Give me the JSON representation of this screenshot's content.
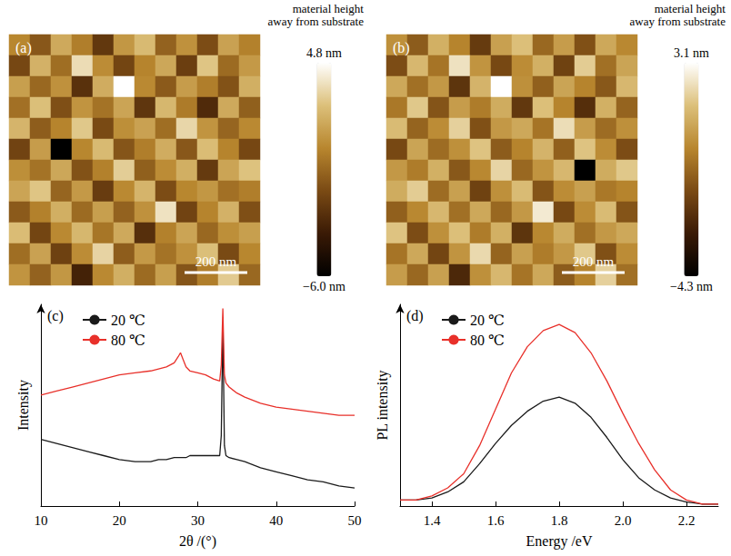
{
  "chart_data": [
    {
      "type": "heatmap",
      "panel": "(a)",
      "colorbar_title": "material height away from substrate",
      "colorbar_range": [
        -6.0,
        4.8
      ],
      "colorbar_ticks": [
        {
          "value": 4.8,
          "label": "4.8 nm"
        },
        {
          "value": -6.0,
          "label": "−6.0 nm"
        }
      ],
      "scale_bar": {
        "value": 200,
        "label": "200 nm"
      },
      "field": 800,
      "cells": [
        [
          0.5,
          -1.2,
          1.8,
          0.2,
          -2.5,
          1.1,
          2.4,
          -0.8,
          0.9,
          -1.6,
          1.5,
          0.3
        ],
        [
          -1.8,
          2.1,
          -0.4,
          3.6,
          0.7,
          -1.9,
          0.4,
          1.7,
          -2.2,
          2.8,
          -0.5,
          1.2
        ],
        [
          1.4,
          -0.6,
          0.9,
          -2.8,
          1.9,
          4.8,
          0.6,
          -1.1,
          1.3,
          0.2,
          -1.4,
          2.0
        ],
        [
          -0.3,
          2.6,
          -1.5,
          1.0,
          -0.2,
          1.6,
          -2.6,
          2.3,
          0.1,
          -3.1,
          1.8,
          -0.9
        ],
        [
          2.2,
          -1.0,
          0.4,
          2.9,
          -1.7,
          0.8,
          1.5,
          -0.4,
          3.4,
          1.0,
          -0.7,
          0.6
        ],
        [
          -2.0,
          1.3,
          -6.0,
          0.5,
          2.4,
          -1.3,
          0.2,
          1.9,
          -1.2,
          2.5,
          0.4,
          -1.8
        ],
        [
          0.8,
          -0.2,
          1.7,
          -1.4,
          0.3,
          3.1,
          -0.9,
          0.7,
          2.0,
          -2.4,
          1.6,
          2.7
        ],
        [
          1.6,
          2.8,
          -0.7,
          1.2,
          -2.3,
          0.6,
          2.2,
          -1.6,
          0.5,
          1.1,
          -0.3,
          0.2
        ],
        [
          -1.1,
          0.3,
          2.0,
          -0.5,
          1.4,
          -0.8,
          0.9,
          3.8,
          -2.0,
          0.4,
          2.1,
          -1.5
        ],
        [
          2.5,
          -1.9,
          0.6,
          2.3,
          -0.1,
          1.8,
          -2.9,
          0.3,
          1.6,
          -0.6,
          0.8,
          1.4
        ],
        [
          -0.4,
          1.5,
          -2.1,
          0.7,
          3.3,
          -1.0,
          1.2,
          -0.2,
          0.9,
          2.6,
          -1.7,
          0.5
        ],
        [
          1.0,
          -0.8,
          1.1,
          -3.5,
          0.6,
          2.0,
          -0.5,
          1.4,
          -1.3,
          0.2,
          3.0,
          -0.6
        ]
      ]
    },
    {
      "type": "heatmap",
      "panel": "(b)",
      "colorbar_title": "material height away from substrate",
      "colorbar_range": [
        -4.3,
        3.1
      ],
      "colorbar_ticks": [
        {
          "value": 3.1,
          "label": "3.1 nm"
        },
        {
          "value": -4.3,
          "label": "−4.3 nm"
        }
      ],
      "scale_bar": {
        "value": 200,
        "label": "200 nm"
      },
      "field": 800,
      "cells": [
        [
          0.4,
          -0.9,
          1.2,
          0.1,
          -1.8,
          0.8,
          1.6,
          -0.6,
          0.7,
          -1.2,
          1.0,
          0.2
        ],
        [
          -1.3,
          1.4,
          -0.3,
          2.4,
          0.5,
          -1.4,
          0.3,
          1.2,
          -1.6,
          1.9,
          -0.4,
          0.9
        ],
        [
          1.0,
          -0.4,
          0.6,
          -2.0,
          1.3,
          3.1,
          0.4,
          -0.8,
          0.9,
          0.1,
          -1.0,
          1.4
        ],
        [
          -0.2,
          1.8,
          -1.1,
          0.7,
          -0.1,
          1.1,
          -1.9,
          1.6,
          0.1,
          -2.2,
          1.2,
          -0.7
        ],
        [
          1.5,
          -0.7,
          0.3,
          2.0,
          -1.2,
          0.6,
          1.0,
          -0.3,
          2.3,
          0.7,
          -0.5,
          0.4
        ],
        [
          -1.4,
          0.9,
          -0.5,
          0.4,
          1.7,
          -0.9,
          0.1,
          1.3,
          -0.8,
          1.7,
          0.3,
          -1.3
        ],
        [
          0.6,
          -0.1,
          1.2,
          -1.0,
          0.2,
          2.1,
          -0.6,
          0.5,
          1.4,
          -4.3,
          1.1,
          1.8
        ],
        [
          1.1,
          1.9,
          -0.5,
          0.8,
          -1.6,
          0.4,
          1.5,
          -1.1,
          0.3,
          0.8,
          -0.2,
          0.1
        ],
        [
          -0.8,
          0.2,
          1.4,
          -0.4,
          1.0,
          -0.6,
          0.6,
          2.6,
          -1.4,
          0.3,
          1.5,
          -1.1
        ],
        [
          1.7,
          -1.3,
          0.4,
          1.6,
          -0.1,
          1.2,
          -2.0,
          0.2,
          1.1,
          -0.4,
          0.6,
          1.0
        ],
        [
          -0.3,
          1.0,
          -1.5,
          0.5,
          2.2,
          -0.7,
          0.8,
          -0.1,
          0.6,
          1.8,
          -1.2,
          0.3
        ],
        [
          0.7,
          -0.6,
          0.8,
          -2.4,
          0.4,
          1.4,
          -0.3,
          1.0,
          -0.9,
          0.1,
          2.0,
          -0.4
        ]
      ]
    },
    {
      "type": "line",
      "panel": "(c)",
      "x_label": "2θ /(°)",
      "y_label": "Intensity",
      "x": [
        10,
        12,
        14,
        16,
        18,
        20,
        22,
        24,
        25,
        26,
        27,
        27.5,
        27.8,
        28.1,
        28.5,
        29,
        30,
        31,
        32,
        32.8,
        33.0,
        33.2,
        33.4,
        33.6,
        34,
        35,
        36,
        38,
        40,
        42,
        44,
        46,
        48,
        50
      ],
      "series": [
        {
          "name": "20 ℃",
          "color": "#1a1a1a",
          "values": [
            3.3,
            3.1,
            2.9,
            2.7,
            2.5,
            2.3,
            2.2,
            2.2,
            2.3,
            2.3,
            2.4,
            2.4,
            2.4,
            2.4,
            2.4,
            2.5,
            2.5,
            2.5,
            2.5,
            2.5,
            3.5,
            9.1,
            3.0,
            2.5,
            2.4,
            2.3,
            2.2,
            1.9,
            1.7,
            1.5,
            1.3,
            1.2,
            1.0,
            0.9
          ]
        },
        {
          "name": "80 ℃",
          "color": "#e8302a",
          "values": [
            5.5,
            5.7,
            5.9,
            6.1,
            6.3,
            6.5,
            6.6,
            6.7,
            6.8,
            6.9,
            7.1,
            7.4,
            7.6,
            7.3,
            6.9,
            6.7,
            6.6,
            6.5,
            6.3,
            6.2,
            7.0,
            9.8,
            6.5,
            6.1,
            5.9,
            5.6,
            5.4,
            5.1,
            4.9,
            4.8,
            4.7,
            4.6,
            4.5,
            4.5
          ]
        }
      ],
      "xlim": [
        10,
        50
      ],
      "xticks": [
        10,
        20,
        30,
        40,
        50
      ],
      "ylim": [
        0,
        10
      ],
      "grid": false,
      "legend": "top-left",
      "tick_labels": "x"
    },
    {
      "type": "line",
      "panel": "(d)",
      "x_label": "Energy /eV",
      "y_label": "PL intensity",
      "x": [
        1.3,
        1.35,
        1.4,
        1.45,
        1.5,
        1.55,
        1.6,
        1.65,
        1.7,
        1.75,
        1.8,
        1.85,
        1.9,
        1.95,
        2.0,
        2.05,
        2.1,
        2.15,
        2.2,
        2.25,
        2.3
      ],
      "series": [
        {
          "name": "20 ℃",
          "color": "#1a1a1a",
          "values": [
            0.3,
            0.3,
            0.4,
            0.7,
            1.2,
            2.1,
            3.1,
            4.0,
            4.7,
            5.2,
            5.4,
            5.1,
            4.4,
            3.4,
            2.3,
            1.4,
            0.8,
            0.4,
            0.2,
            0.1,
            0.1
          ]
        },
        {
          "name": "80 ℃",
          "color": "#e8302a",
          "values": [
            0.3,
            0.3,
            0.5,
            0.9,
            1.6,
            3.0,
            4.8,
            6.6,
            7.9,
            8.7,
            9.0,
            8.6,
            7.6,
            6.2,
            4.6,
            3.1,
            1.8,
            0.8,
            0.3,
            0.1,
            0.1
          ]
        }
      ],
      "xlim": [
        1.3,
        2.3
      ],
      "xticks": [
        1.4,
        1.6,
        1.8,
        {
          "value": 2.0,
          "label": "2.0"
        },
        2.2
      ],
      "ylim": [
        0,
        10
      ],
      "grid": false,
      "legend": "top-left",
      "tick_labels": "x"
    }
  ]
}
